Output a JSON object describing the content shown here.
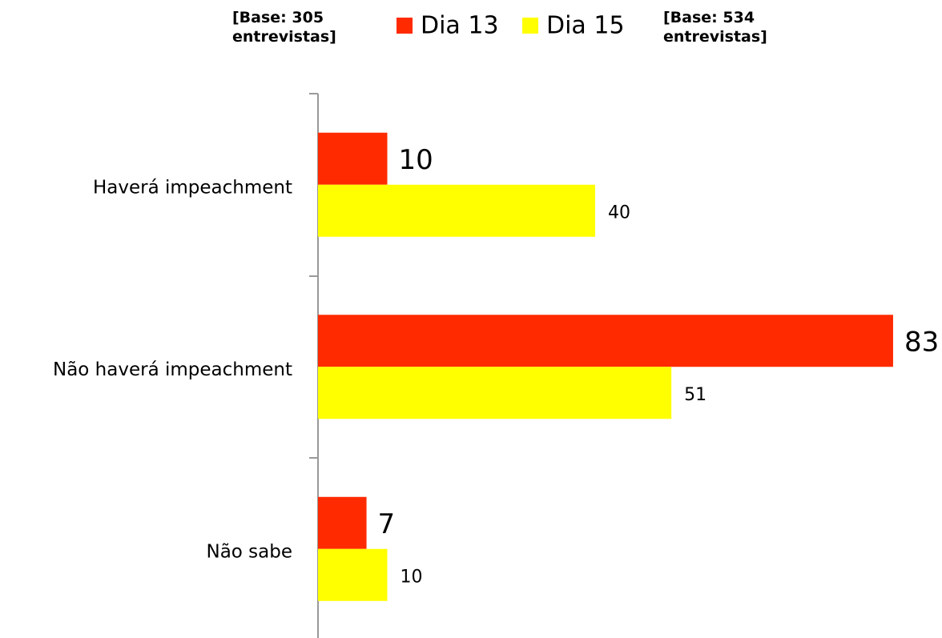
{
  "chart_data": {
    "type": "bar",
    "orientation": "horizontal",
    "annotations": [
      "[Base: 305 entrevistas]",
      "[Base: 534 entrevistas]"
    ],
    "categories": [
      "Haverá impeachment",
      "Não haverá impeachment",
      "Não sabe"
    ],
    "series": [
      {
        "name": "Dia 13",
        "color": "#ff2a00",
        "values": [
          10,
          83,
          7
        ]
      },
      {
        "name": "Dia 15",
        "color": "#ffff00",
        "values": [
          40,
          51,
          10
        ]
      }
    ]
  }
}
